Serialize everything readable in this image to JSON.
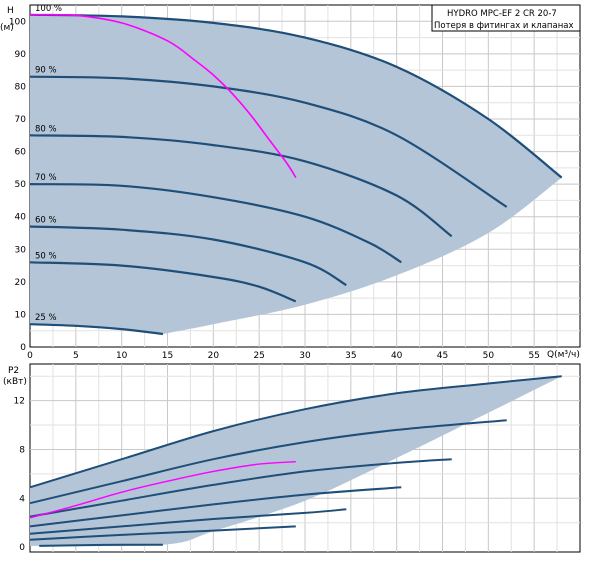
{
  "legend": {
    "line1": "HYDRO MPC-EF 2 CR 20-7",
    "line2": "Потеря в фитингах и клапанах"
  },
  "colors": {
    "area": "#b3c5d6",
    "curve": "#1f4e79",
    "system": "#ff00ff",
    "grid": "#c8c8c8",
    "frame": "#000000"
  },
  "chart_data": [
    {
      "type": "line",
      "ylabel": "H",
      "yunit": "(м)",
      "xlabel": "Q(м³/ч)",
      "xlim": [
        0,
        60
      ],
      "ylim": [
        0,
        105
      ],
      "xticks": [
        0,
        5,
        10,
        15,
        20,
        25,
        30,
        35,
        40,
        45,
        50,
        55
      ],
      "yticks": [
        0,
        10,
        20,
        30,
        40,
        50,
        60,
        70,
        80,
        90,
        100
      ],
      "grid": true,
      "series": [
        {
          "label": "100 %",
          "points": [
            [
              0,
              102
            ],
            [
              10,
              101.5
            ],
            [
              20,
              99.5
            ],
            [
              30,
              95
            ],
            [
              40,
              86
            ],
            [
              50,
              70
            ],
            [
              58,
              52
            ]
          ]
        },
        {
          "label": "90 %",
          "points": [
            [
              0,
              83
            ],
            [
              10,
              82.5
            ],
            [
              20,
              80
            ],
            [
              30,
              75
            ],
            [
              40,
              65
            ],
            [
              52,
              43
            ]
          ]
        },
        {
          "label": "80 %",
          "points": [
            [
              0,
              65
            ],
            [
              10,
              64.5
            ],
            [
              20,
              62
            ],
            [
              30,
              57
            ],
            [
              40,
              46.5
            ],
            [
              46,
              34
            ]
          ]
        },
        {
          "label": "70 %",
          "points": [
            [
              0,
              50
            ],
            [
              10,
              49.5
            ],
            [
              20,
              46
            ],
            [
              30,
              40
            ],
            [
              37,
              32
            ],
            [
              40.5,
              26
            ]
          ]
        },
        {
          "label": "60 %",
          "points": [
            [
              0,
              37
            ],
            [
              10,
              36
            ],
            [
              20,
              33
            ],
            [
              30,
              26
            ],
            [
              34.5,
              19
            ]
          ]
        },
        {
          "label": "50 %",
          "points": [
            [
              0,
              26
            ],
            [
              10,
              25
            ],
            [
              20,
              21.5
            ],
            [
              25,
              18.5
            ],
            [
              29,
              14
            ]
          ]
        },
        {
          "label": "25 %",
          "points": [
            [
              0,
              7
            ],
            [
              5,
              6.5
            ],
            [
              10,
              5.5
            ],
            [
              14.5,
              4
            ]
          ]
        },
        {
          "label": "",
          "role": "system",
          "points": [
            [
              0,
              102
            ],
            [
              5,
              101.8
            ],
            [
              10,
              99.5
            ],
            [
              15,
              94
            ],
            [
              18,
              88
            ],
            [
              20,
              83.5
            ],
            [
              22,
              78
            ],
            [
              24,
              71.5
            ],
            [
              26,
              64
            ],
            [
              28,
              56.5
            ],
            [
              29,
              52
            ]
          ]
        }
      ],
      "area_lower": [
        [
          14.5,
          4
        ],
        [
          20,
          7
        ],
        [
          30,
          13
        ],
        [
          40,
          22
        ],
        [
          50,
          35
        ],
        [
          58,
          52
        ]
      ]
    },
    {
      "type": "line",
      "ylabel": "P2",
      "yunit": "(кВт)",
      "xlim": [
        0,
        60
      ],
      "ylim": [
        -0.4,
        15
      ],
      "yticks": [
        0,
        4,
        8,
        12
      ],
      "grid": true,
      "series": [
        {
          "label": "100 %",
          "points": [
            [
              0,
              4.9
            ],
            [
              10,
              7.2
            ],
            [
              20,
              9.5
            ],
            [
              30,
              11.3
            ],
            [
              40,
              12.6
            ],
            [
              50,
              13.4
            ],
            [
              58,
              14
            ]
          ]
        },
        {
          "label": "90 %",
          "points": [
            [
              0,
              3.6
            ],
            [
              10,
              5.4
            ],
            [
              20,
              7.2
            ],
            [
              30,
              8.6
            ],
            [
              40,
              9.6
            ],
            [
              52,
              10.4
            ]
          ]
        },
        {
          "label": "80 %",
          "points": [
            [
              0,
              2.5
            ],
            [
              10,
              3.8
            ],
            [
              20,
              5.1
            ],
            [
              30,
              6.2
            ],
            [
              40,
              6.9
            ],
            [
              46,
              7.2
            ]
          ]
        },
        {
          "label": "70 %",
          "points": [
            [
              0,
              1.7
            ],
            [
              10,
              2.6
            ],
            [
              20,
              3.5
            ],
            [
              30,
              4.3
            ],
            [
              40.5,
              4.9
            ]
          ]
        },
        {
          "label": "60 %",
          "points": [
            [
              0,
              1.1
            ],
            [
              10,
              1.7
            ],
            [
              20,
              2.3
            ],
            [
              30,
              2.8
            ],
            [
              34.5,
              3.1
            ]
          ]
        },
        {
          "label": "50 %",
          "points": [
            [
              0,
              0.6
            ],
            [
              10,
              1.0
            ],
            [
              20,
              1.35
            ],
            [
              29,
              1.7
            ]
          ]
        },
        {
          "label": "25 %",
          "points": [
            [
              1,
              0.1
            ],
            [
              8,
              0.18
            ],
            [
              14.5,
              0.2
            ]
          ]
        },
        {
          "label": "",
          "role": "system",
          "points": [
            [
              0,
              2.4
            ],
            [
              5,
              3.4
            ],
            [
              10,
              4.5
            ],
            [
              15,
              5.4
            ],
            [
              20,
              6.2
            ],
            [
              25,
              6.8
            ],
            [
              29,
              7.0
            ]
          ]
        }
      ],
      "area_upper": [
        [
          0,
          4.9
        ],
        [
          10,
          7.2
        ],
        [
          20,
          9.5
        ],
        [
          30,
          11.3
        ],
        [
          40,
          12.6
        ],
        [
          50,
          13.4
        ],
        [
          58,
          14
        ]
      ],
      "area_lower": [
        [
          58,
          14
        ],
        [
          50,
          11
        ],
        [
          40,
          7.3
        ],
        [
          30,
          3.8
        ],
        [
          20,
          1.3
        ],
        [
          14.5,
          0.2
        ],
        [
          0,
          0.1
        ]
      ]
    }
  ]
}
